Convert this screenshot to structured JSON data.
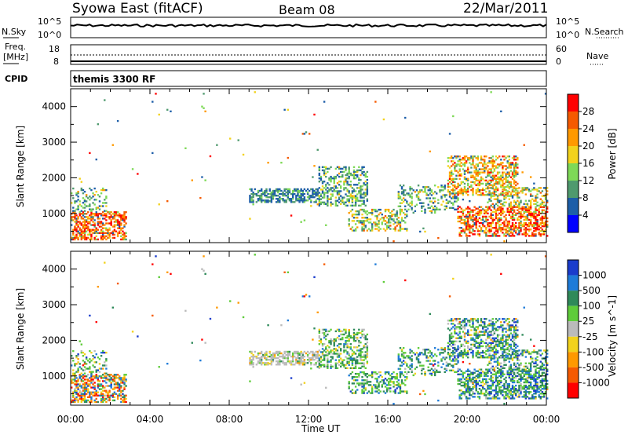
{
  "header": {
    "station": "Syowa East (fitACF)",
    "beam": "Beam 08",
    "date": "22/Mar/2011"
  },
  "noise_panel": {
    "left_label": "N.Sky",
    "right_label": "N.Search",
    "left_ticks": [
      "10^5",
      "10^0"
    ],
    "right_ticks": [
      "10^5",
      "10^0"
    ]
  },
  "freq_panel": {
    "left_label_line1": "Freq.",
    "left_label_line2": "[MHz]",
    "right_label": "Nave",
    "left_ticks": [
      "18",
      "8"
    ],
    "right_ticks": [
      "60",
      "0"
    ]
  },
  "cpid": {
    "label": "CPID",
    "program": "themis 3300 RF"
  },
  "chart_data": [
    {
      "type": "heatmap",
      "name": "power",
      "ylabel": "Slant Range [km]",
      "xlabel": "",
      "ylim": [
        180,
        4500
      ],
      "xlim": [
        0,
        24
      ],
      "y_ticks": [
        1000,
        2000,
        3000,
        4000
      ],
      "colorbar": {
        "label": "Power [dB]",
        "ticks": [
          "28",
          "24",
          "20",
          "16",
          "12",
          "8",
          "4"
        ],
        "colors": [
          "#ff0000",
          "#f55a00",
          "#ff9900",
          "#f2d21c",
          "#7ed957",
          "#4f9a6e",
          "#1d5ea8",
          "#0000ff"
        ]
      }
    },
    {
      "type": "heatmap",
      "name": "velocity",
      "ylabel": "Slant Range [km]",
      "xlabel": "Time UT",
      "ylim": [
        180,
        4500
      ],
      "xlim": [
        0,
        24
      ],
      "y_ticks": [
        1000,
        2000,
        3000,
        4000
      ],
      "x_ticks": [
        "00:00",
        "04:00",
        "08:00",
        "12:00",
        "16:00",
        "20:00",
        "00:00"
      ],
      "colorbar": {
        "label": "Velocity [m s^-1]",
        "ticks": [
          "1000",
          "500",
          "100",
          "25",
          "-25",
          "-100",
          "-500",
          "-1000"
        ],
        "colors": [
          "#1a3ccc",
          "#1e7bd8",
          "#2f8a5a",
          "#5fcc3a",
          "#bbbbbb",
          "#f2d21c",
          "#ff9900",
          "#f55a00",
          "#ff0000"
        ]
      }
    }
  ],
  "colors": {
    "axis": "#000000",
    "background": "#ffffff"
  }
}
